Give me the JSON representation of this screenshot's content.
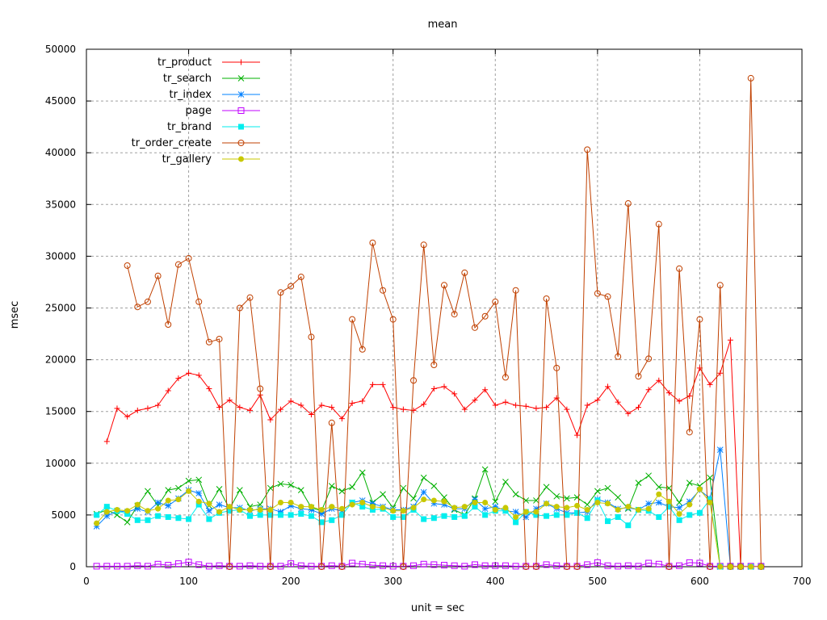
{
  "chart_data": {
    "type": "line",
    "title": "mean",
    "xlabel": "unit = sec",
    "ylabel": "msec",
    "xlim": [
      0,
      700
    ],
    "ylim": [
      0,
      50000
    ],
    "xticks": [
      0,
      100,
      200,
      300,
      400,
      500,
      600,
      700
    ],
    "yticks": [
      0,
      5000,
      10000,
      15000,
      20000,
      25000,
      30000,
      35000,
      40000,
      45000,
      50000
    ],
    "grid": true,
    "legend_position": "top-left",
    "series": [
      {
        "name": "tr_product",
        "color": "#ff0000",
        "marker": "plus",
        "x": [
          20,
          30,
          40,
          50,
          60,
          70,
          80,
          90,
          100,
          110,
          120,
          130,
          140,
          150,
          160,
          170,
          180,
          190,
          200,
          210,
          220,
          230,
          240,
          250,
          260,
          270,
          280,
          290,
          300,
          310,
          320,
          330,
          340,
          350,
          360,
          370,
          380,
          390,
          400,
          410,
          420,
          430,
          440,
          450,
          460,
          470,
          480,
          490,
          500,
          510,
          520,
          530,
          540,
          550,
          560,
          570,
          580,
          590,
          600,
          610,
          620,
          630,
          640,
          650,
          660
        ],
        "y": [
          12100,
          15300,
          14500,
          15100,
          15300,
          15600,
          17000,
          18200,
          18700,
          18500,
          17200,
          15400,
          16100,
          15400,
          15100,
          16600,
          14200,
          15200,
          16000,
          15600,
          14700,
          15600,
          15400,
          14300,
          15800,
          16000,
          17600,
          17600,
          15400,
          15200,
          15100,
          15700,
          17200,
          17400,
          16700,
          15200,
          16100,
          17100,
          15600,
          15900,
          15600,
          15500,
          15300,
          15400,
          16300,
          15200,
          12700,
          15600,
          16100,
          17400,
          15900,
          14800,
          15400,
          17100,
          18000,
          16800,
          16000,
          16500,
          19200,
          17600,
          18700,
          21900,
          0,
          0,
          0
        ]
      },
      {
        "name": "tr_search",
        "color": "#00b000",
        "marker": "cross",
        "x": [
          10,
          20,
          30,
          40,
          50,
          60,
          70,
          80,
          90,
          100,
          110,
          120,
          130,
          140,
          150,
          160,
          170,
          180,
          190,
          200,
          210,
          220,
          230,
          240,
          250,
          260,
          270,
          280,
          290,
          300,
          310,
          320,
          330,
          340,
          350,
          360,
          370,
          380,
          390,
          400,
          410,
          420,
          430,
          440,
          450,
          460,
          470,
          480,
          490,
          500,
          510,
          520,
          530,
          540,
          550,
          560,
          570,
          580,
          590,
          600,
          610,
          620,
          630,
          640,
          650,
          660
        ],
        "y": [
          5100,
          5500,
          5000,
          4300,
          5900,
          7300,
          5900,
          7400,
          7600,
          8300,
          8400,
          5900,
          7500,
          5600,
          7400,
          5800,
          6000,
          7600,
          8000,
          7900,
          7400,
          5700,
          5400,
          7800,
          7300,
          7700,
          9100,
          6200,
          7000,
          5700,
          7600,
          6600,
          8600,
          7800,
          6700,
          5500,
          5000,
          6600,
          9400,
          6300,
          8200,
          7000,
          6400,
          6400,
          7700,
          6800,
          6600,
          6700,
          6000,
          7300,
          7600,
          6700,
          5600,
          8100,
          8800,
          7700,
          7600,
          6200,
          8100,
          7800,
          8600,
          0,
          0,
          0,
          0,
          0
        ]
      },
      {
        "name": "tr_index",
        "color": "#0080ff",
        "marker": "star",
        "x": [
          10,
          20,
          30,
          40,
          50,
          60,
          70,
          80,
          90,
          100,
          110,
          120,
          130,
          140,
          150,
          160,
          170,
          180,
          190,
          200,
          210,
          220,
          230,
          240,
          250,
          260,
          270,
          280,
          290,
          300,
          310,
          320,
          330,
          340,
          350,
          360,
          370,
          380,
          390,
          400,
          410,
          420,
          430,
          440,
          450,
          460,
          470,
          480,
          490,
          500,
          510,
          520,
          530,
          540,
          550,
          560,
          570,
          580,
          590,
          600,
          610,
          620,
          630,
          640,
          650,
          660
        ],
        "y": [
          3900,
          4900,
          5400,
          5300,
          5600,
          5300,
          6200,
          5900,
          6600,
          7400,
          7100,
          5400,
          6000,
          5700,
          5700,
          5400,
          5600,
          5600,
          5300,
          5900,
          5600,
          5500,
          5100,
          5600,
          5400,
          6200,
          6400,
          6100,
          5800,
          5500,
          5500,
          5800,
          7200,
          6100,
          6000,
          5600,
          5600,
          6500,
          5600,
          5800,
          5400,
          5300,
          4800,
          5600,
          6100,
          5600,
          5200,
          5200,
          5300,
          6500,
          6200,
          5600,
          5700,
          5500,
          6100,
          6200,
          5800,
          5700,
          6300,
          7400,
          6600,
          11300,
          0,
          0,
          0,
          0
        ]
      },
      {
        "name": "page",
        "color": "#c000ff",
        "marker": "open-square",
        "x": [
          10,
          20,
          30,
          40,
          50,
          60,
          70,
          80,
          90,
          100,
          110,
          120,
          130,
          140,
          150,
          160,
          170,
          180,
          190,
          200,
          210,
          220,
          230,
          240,
          250,
          260,
          270,
          280,
          290,
          300,
          310,
          320,
          330,
          340,
          350,
          360,
          370,
          380,
          390,
          400,
          410,
          420,
          430,
          440,
          450,
          460,
          470,
          480,
          490,
          500,
          510,
          520,
          530,
          540,
          550,
          560,
          570,
          580,
          590,
          600,
          610,
          620,
          630,
          640,
          650,
          660
        ],
        "y": [
          50,
          50,
          50,
          50,
          100,
          50,
          250,
          150,
          300,
          450,
          200,
          50,
          100,
          50,
          50,
          100,
          50,
          50,
          50,
          300,
          100,
          50,
          50,
          100,
          50,
          350,
          250,
          150,
          100,
          50,
          50,
          100,
          250,
          200,
          150,
          100,
          50,
          200,
          100,
          100,
          100,
          50,
          50,
          50,
          200,
          100,
          50,
          50,
          200,
          400,
          100,
          50,
          100,
          50,
          350,
          250,
          50,
          100,
          400,
          350,
          50,
          50,
          50,
          50,
          50,
          50
        ]
      },
      {
        "name": "tr_brand",
        "color": "#00eeee",
        "marker": "filled-square",
        "x": [
          10,
          20,
          30,
          40,
          50,
          60,
          70,
          80,
          90,
          100,
          110,
          120,
          130,
          140,
          150,
          160,
          170,
          180,
          190,
          200,
          210,
          220,
          230,
          240,
          250,
          260,
          270,
          280,
          290,
          300,
          310,
          320,
          330,
          340,
          350,
          360,
          370,
          380,
          390,
          400,
          410,
          420,
          430,
          440,
          450,
          460,
          470,
          480,
          490,
          500,
          510,
          520,
          530,
          540,
          550,
          560,
          570,
          580,
          590,
          600,
          610,
          620,
          630,
          640,
          650,
          660
        ],
        "y": [
          5000,
          5800,
          5400,
          5100,
          4500,
          4500,
          4900,
          4800,
          4700,
          4600,
          6000,
          4600,
          5200,
          5400,
          5500,
          4900,
          5000,
          5000,
          5000,
          5000,
          5100,
          4900,
          4300,
          4500,
          5000,
          6200,
          5800,
          5500,
          5600,
          4800,
          4800,
          5500,
          4600,
          4700,
          4900,
          4800,
          4900,
          5800,
          5000,
          5400,
          5400,
          4300,
          5300,
          5000,
          4900,
          5000,
          5000,
          5200,
          4700,
          6400,
          4400,
          4800,
          4000,
          5500,
          5400,
          4800,
          5800,
          4500,
          5000,
          5200,
          6500,
          0,
          0,
          0,
          0,
          0
        ]
      },
      {
        "name": "tr_order_create",
        "color": "#c04000",
        "marker": "open-circle",
        "x": [
          40,
          50,
          60,
          70,
          80,
          90,
          100,
          110,
          120,
          130,
          140,
          150,
          160,
          170,
          180,
          190,
          200,
          210,
          220,
          230,
          240,
          250,
          260,
          270,
          280,
          290,
          300,
          310,
          320,
          330,
          340,
          350,
          360,
          370,
          380,
          390,
          400,
          410,
          420,
          430,
          440,
          450,
          460,
          470,
          480,
          490,
          500,
          510,
          520,
          530,
          540,
          550,
          560,
          570,
          580,
          590,
          600,
          610,
          620,
          630,
          640,
          650,
          660
        ],
        "y": [
          29100,
          25100,
          25600,
          28100,
          23400,
          29200,
          29800,
          25600,
          21700,
          22000,
          0,
          25000,
          26000,
          17200,
          0,
          26500,
          27100,
          28000,
          22200,
          0,
          13900,
          0,
          23900,
          21000,
          31300,
          26700,
          23900,
          0,
          18000,
          31100,
          19500,
          27200,
          24400,
          28400,
          23100,
          24200,
          25600,
          18300,
          26700,
          0,
          0,
          25900,
          19200,
          0,
          0,
          40300,
          26400,
          26100,
          20300,
          35100,
          18400,
          20100,
          33100,
          0,
          28800,
          13000,
          23900,
          0,
          27200,
          0,
          0,
          47200,
          0
        ]
      },
      {
        "name": "tr_gallery",
        "color": "#c8c800",
        "marker": "filled-circle",
        "x": [
          10,
          20,
          30,
          40,
          50,
          60,
          70,
          80,
          90,
          100,
          110,
          120,
          130,
          140,
          150,
          160,
          170,
          180,
          190,
          200,
          210,
          220,
          230,
          240,
          250,
          260,
          270,
          280,
          290,
          300,
          310,
          320,
          330,
          340,
          350,
          360,
          370,
          380,
          390,
          400,
          410,
          420,
          430,
          440,
          450,
          460,
          470,
          480,
          490,
          500,
          510,
          520,
          530,
          540,
          550,
          560,
          570,
          580,
          590,
          600,
          610,
          620,
          630,
          640,
          650,
          660
        ],
        "y": [
          4200,
          5300,
          5500,
          5400,
          6000,
          5400,
          5600,
          6400,
          6500,
          7300,
          6300,
          6100,
          5300,
          5800,
          5500,
          5500,
          5500,
          5500,
          6200,
          6200,
          5800,
          5800,
          5500,
          5800,
          5600,
          6000,
          6200,
          5800,
          5700,
          5400,
          5400,
          5700,
          6500,
          6400,
          6300,
          5700,
          5800,
          6200,
          6200,
          5500,
          5700,
          4800,
          5300,
          5300,
          6100,
          5800,
          5700,
          5900,
          5500,
          6200,
          6100,
          5500,
          5800,
          5500,
          5600,
          7000,
          6300,
          5100,
          6000,
          7500,
          6200,
          0,
          0,
          0,
          0,
          0
        ]
      }
    ]
  }
}
